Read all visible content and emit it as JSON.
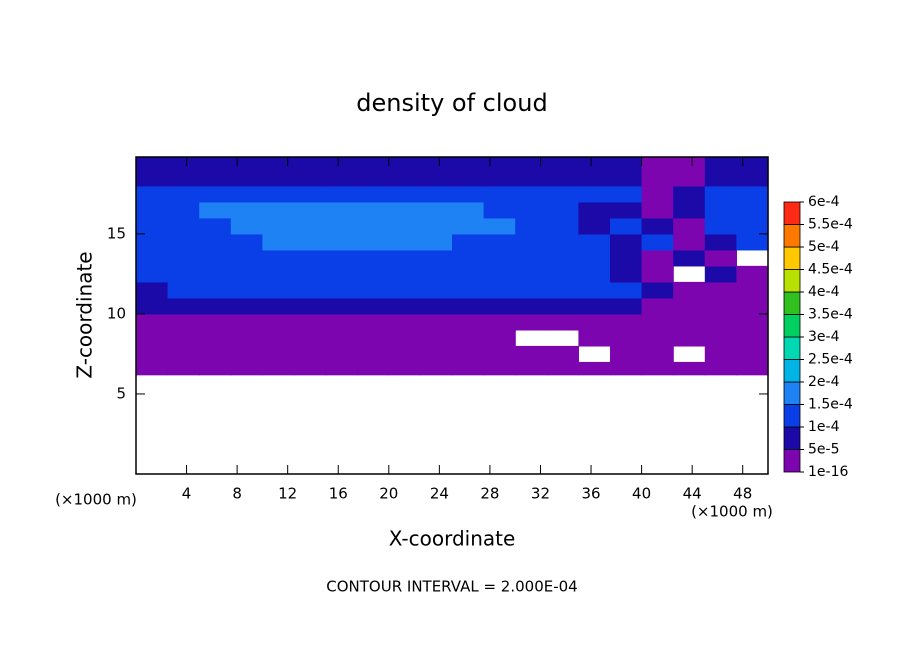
{
  "chart_data": {
    "type": "contour",
    "title": "density of cloud",
    "x_label": "X-coordinate",
    "y_label": "Z-coordinate",
    "x_unit_left": "(×1000 m)",
    "x_unit_right": "(×1000 m)",
    "footer": "CONTOUR INTERVAL = 2.000E-04",
    "xlim": [
      0,
      50
    ],
    "ylim": [
      0,
      19.8
    ],
    "xticks": [
      4,
      8,
      12,
      16,
      20,
      24,
      28,
      32,
      36,
      40,
      44,
      48
    ],
    "yticks": [
      5,
      10,
      15
    ],
    "x": [
      0,
      2.5,
      5,
      7.5,
      10,
      12.5,
      15,
      17.5,
      20,
      22.5,
      25,
      27.5,
      30,
      32.5,
      35,
      37.5,
      40,
      42.5,
      45,
      47.5,
      50
    ],
    "z": [
      6.2,
      7,
      8,
      9,
      10,
      11,
      12,
      13,
      14,
      15,
      16,
      17,
      18,
      19,
      19.8
    ],
    "values": [
      [
        2e-05,
        2e-05,
        2e-05,
        2e-05,
        2e-05,
        2e-05,
        2e-05,
        2e-05,
        2e-05,
        2e-05,
        2e-05,
        2e-05,
        2e-05,
        2e-05,
        2e-05,
        2e-05,
        2e-05,
        2e-05,
        2e-05,
        2e-05
      ],
      [
        2e-05,
        2e-05,
        2e-05,
        2e-05,
        2e-05,
        2e-05,
        2e-05,
        2e-05,
        2e-05,
        2e-05,
        2e-05,
        2e-05,
        2e-05,
        2e-05,
        null,
        2e-05,
        2e-05,
        null,
        2e-05,
        2e-05
      ],
      [
        2e-05,
        2e-05,
        2e-05,
        2e-05,
        2e-05,
        2e-05,
        2e-05,
        2e-05,
        2e-05,
        2e-05,
        2e-05,
        2e-05,
        null,
        null,
        2e-05,
        2e-05,
        2e-05,
        2e-05,
        2e-05,
        2e-05
      ],
      [
        2e-05,
        2e-05,
        2e-05,
        2e-05,
        2e-05,
        2e-05,
        2e-05,
        2e-05,
        2e-05,
        2e-05,
        2e-05,
        2e-05,
        2e-05,
        2e-05,
        2e-05,
        2e-05,
        2e-05,
        2e-05,
        2e-05,
        2e-05
      ],
      [
        7e-05,
        7e-05,
        7e-05,
        7e-05,
        7e-05,
        7e-05,
        7e-05,
        7e-05,
        7e-05,
        7e-05,
        7e-05,
        7e-05,
        7e-05,
        7e-05,
        7e-05,
        7e-05,
        2e-05,
        2e-05,
        2e-05,
        2e-05
      ],
      [
        7e-05,
        0.00012,
        0.00012,
        0.00012,
        0.00012,
        0.00012,
        0.00012,
        0.00012,
        0.00012,
        0.00012,
        0.00012,
        0.00012,
        0.00012,
        0.00012,
        0.00012,
        0.00012,
        7e-05,
        2e-05,
        2e-05,
        2e-05
      ],
      [
        0.00012,
        0.00012,
        0.00012,
        0.00012,
        0.00012,
        0.00012,
        0.00012,
        0.00012,
        0.00012,
        0.00012,
        0.00012,
        0.00012,
        0.00012,
        0.00012,
        0.00012,
        7e-05,
        2e-05,
        null,
        7e-05,
        2e-05
      ],
      [
        0.00012,
        0.00012,
        0.00012,
        0.00012,
        0.00012,
        0.00012,
        0.00012,
        0.00012,
        0.00012,
        0.00012,
        0.00012,
        0.00012,
        0.00012,
        0.00012,
        0.00012,
        7e-05,
        2e-05,
        7e-05,
        2e-05,
        null
      ],
      [
        0.00012,
        0.00012,
        0.00012,
        0.00012,
        0.00016,
        0.00016,
        0.00016,
        0.00016,
        0.00016,
        0.00016,
        0.00012,
        0.00012,
        0.00012,
        0.00012,
        0.00012,
        7e-05,
        0.00012,
        2e-05,
        7e-05,
        0.00012
      ],
      [
        0.00012,
        0.00012,
        0.00012,
        0.00016,
        0.00016,
        0.00016,
        0.00016,
        0.00016,
        0.00016,
        0.00016,
        0.00016,
        0.00016,
        0.00012,
        0.00012,
        7e-05,
        0.00012,
        7e-05,
        2e-05,
        0.00012,
        0.00012
      ],
      [
        0.00012,
        0.00012,
        0.00016,
        0.00016,
        0.00016,
        0.00016,
        0.00016,
        0.00016,
        0.00016,
        0.00016,
        0.00016,
        0.00012,
        0.00012,
        0.00012,
        7e-05,
        7e-05,
        2e-05,
        7e-05,
        0.00012,
        0.00012
      ],
      [
        0.00012,
        0.00012,
        0.00012,
        0.00012,
        0.00012,
        0.00012,
        0.00012,
        0.00012,
        0.00012,
        0.00012,
        0.00012,
        0.00012,
        0.00012,
        0.00012,
        0.00012,
        0.00012,
        2e-05,
        7e-05,
        0.00012,
        0.00012
      ],
      [
        7e-05,
        7e-05,
        7e-05,
        7e-05,
        7e-05,
        7e-05,
        7e-05,
        7e-05,
        7e-05,
        7e-05,
        7e-05,
        7e-05,
        7e-05,
        7e-05,
        7e-05,
        7e-05,
        2e-05,
        2e-05,
        7e-05,
        7e-05
      ],
      [
        7e-05,
        7e-05,
        7e-05,
        7e-05,
        7e-05,
        7e-05,
        7e-05,
        7e-05,
        7e-05,
        7e-05,
        7e-05,
        7e-05,
        7e-05,
        7e-05,
        7e-05,
        7e-05,
        2e-05,
        2e-05,
        7e-05,
        7e-05
      ]
    ],
    "colorbar": {
      "ticks": [
        {
          "value": 1e-16,
          "label": "1e-16"
        },
        {
          "value": 5e-05,
          "label": "5e-5"
        },
        {
          "value": 0.0001,
          "label": "1e-4"
        },
        {
          "value": 0.00015,
          "label": "1.5e-4"
        },
        {
          "value": 0.0002,
          "label": "2e-4"
        },
        {
          "value": 0.00025,
          "label": "2.5e-4"
        },
        {
          "value": 0.0003,
          "label": "3e-4"
        },
        {
          "value": 0.00035,
          "label": "3.5e-4"
        },
        {
          "value": 0.0004,
          "label": "4e-4"
        },
        {
          "value": 0.00045,
          "label": "4.5e-4"
        },
        {
          "value": 0.0005,
          "label": "5e-4"
        },
        {
          "value": 0.00055,
          "label": "5.5e-4"
        },
        {
          "value": 0.0006,
          "label": "6e-4"
        }
      ],
      "colors": [
        "#7d05b0",
        "#1c0aa8",
        "#0a3ee6",
        "#1e82f5",
        "#00b4e6",
        "#00d8b4",
        "#00d060",
        "#30c020",
        "#b8e000",
        "#ffc800",
        "#ff7800",
        "#ff2a14",
        "#ff8c8c"
      ]
    }
  }
}
